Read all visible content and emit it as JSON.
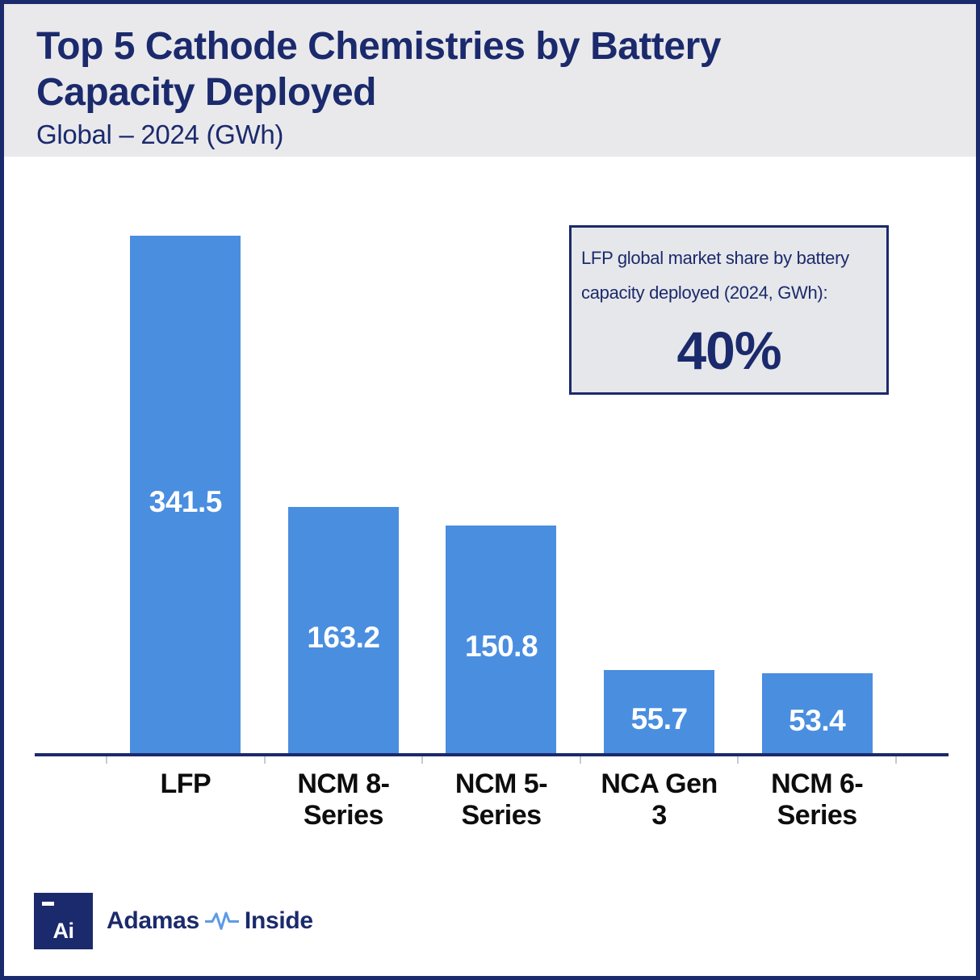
{
  "header": {
    "title_line1": "Top 5 Cathode Chemistries by Battery",
    "title_line2": "Capacity Deployed",
    "subtitle": "Global – 2024 (GWh)"
  },
  "chart_data": {
    "type": "bar",
    "title": "Top 5 Cathode Chemistries by Battery Capacity Deployed",
    "subtitle": "Global – 2024 (GWh)",
    "unit": "GWh",
    "categories": [
      "LFP",
      "NCM 8-Series",
      "NCM 5-Series",
      "NCA Gen 3",
      "NCM 6-Series"
    ],
    "values": [
      341.5,
      163.2,
      150.8,
      55.7,
      53.4
    ],
    "value_labels": [
      "341.5",
      "163.2",
      "150.8",
      "55.7",
      "53.4"
    ],
    "xlabel": "",
    "ylabel": "",
    "ylim": [
      0,
      360
    ],
    "grid": false,
    "legend": null,
    "bar_color": "#4a8ee0",
    "value_label_position": "inside-center",
    "value_label_color": "#ffffff"
  },
  "callout": {
    "line1": "LFP global market share by battery",
    "line2": "capacity deployed (2024, GWh):",
    "value": "40%"
  },
  "footer": {
    "logo_square_text": "Ai",
    "brand_left": "Adamas",
    "brand_right": "Inside",
    "pulse_icon": "heartbeat-pulse-icon"
  },
  "colors": {
    "navy": "#1b2a6c",
    "bar_blue": "#4a8ee0",
    "header_bg": "#e9e9ec",
    "callout_bg": "#e6e7ea",
    "tick": "#c2cad8",
    "category_label": "#0d0d0d",
    "bar_value_text": "#ffffff",
    "pulse_blue": "#5d9ae8"
  }
}
